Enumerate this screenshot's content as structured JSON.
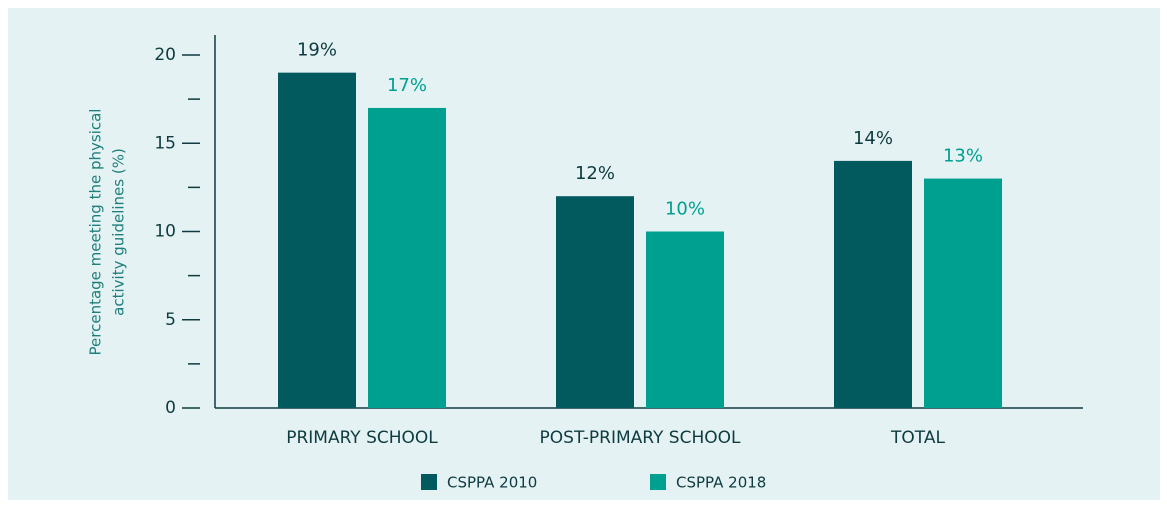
{
  "chart_data": {
    "type": "bar",
    "ylabel": [
      "Percentage meeting the physical",
      "activity guidelines (%)"
    ],
    "categories": [
      "PRIMARY SCHOOL",
      "POST-PRIMARY SCHOOL",
      "TOTAL"
    ],
    "series": [
      {
        "name": "CSPPA 2010",
        "color": "#035a5e",
        "values": [
          19,
          12,
          14
        ],
        "value_labels": [
          "19%",
          "12%",
          "14%"
        ]
      },
      {
        "name": "CSPPA 2018",
        "color": "#00a091",
        "values": [
          17,
          10,
          13
        ],
        "value_labels": [
          "17%",
          "10%",
          "13%"
        ]
      }
    ],
    "ylim": [
      0,
      20
    ],
    "yticks": [
      0,
      5,
      10,
      15,
      20
    ],
    "minor_yticks": [
      2.5,
      7.5,
      12.5,
      17.5
    ],
    "legend": "bottom"
  }
}
